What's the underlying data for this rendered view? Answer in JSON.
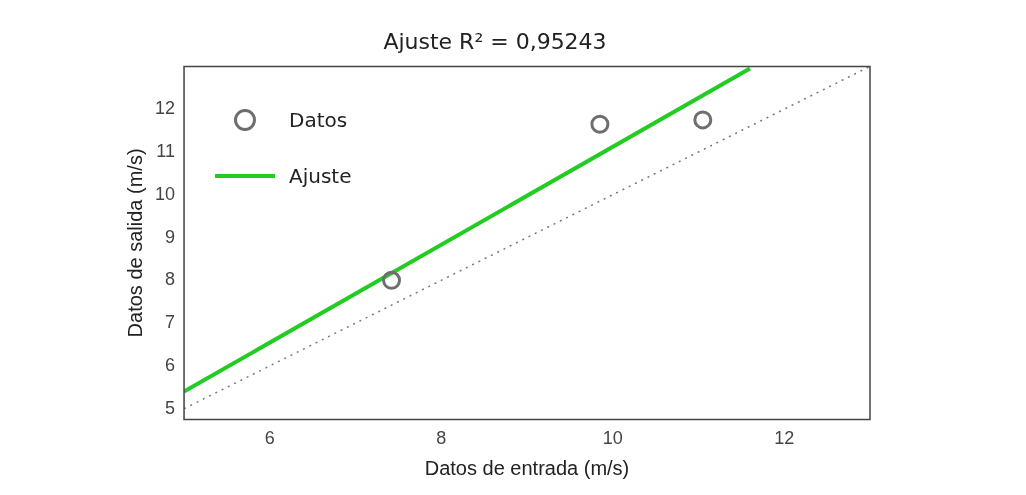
{
  "chart_data": {
    "type": "scatter",
    "title": "Ajuste R² = 0,95243",
    "xlabel": "Datos de entrada (m/s)",
    "ylabel": "Datos de salida (m/s)",
    "xlim": [
      5,
      13
    ],
    "xticks": [
      6,
      8,
      10,
      12
    ],
    "ylim": [
      4.75,
      13
    ],
    "yticks": [
      5,
      6,
      7,
      8,
      9,
      10,
      11,
      12
    ],
    "grid": false,
    "legend": "top left",
    "marker": "circle",
    "series": [
      {
        "name": "Datos",
        "color": "#6e6e6e",
        "x": [
          7.42,
          9.85,
          11.05
        ],
        "values": [
          8.0,
          11.65,
          11.75
        ]
      },
      {
        "name": "Ajuste",
        "type": "line",
        "color": "#22cc22",
        "x": [
          5,
          11.6
        ],
        "values": [
          5.4,
          12.95
        ],
        "marker": "none"
      },
      {
        "type": "line",
        "color": "#777777",
        "x": [
          5,
          13
        ],
        "values": [
          5,
          13
        ],
        "line_style": "dotted",
        "marker": "none"
      }
    ]
  }
}
